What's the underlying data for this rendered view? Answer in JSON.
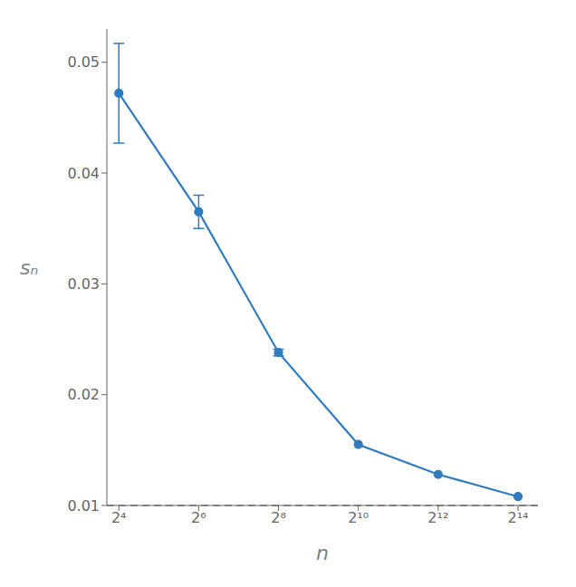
{
  "chart_data": {
    "type": "line",
    "xlabel": "n",
    "ylabel": "sₙ",
    "x": [
      16,
      64,
      256,
      1024,
      4096,
      16384
    ],
    "values": [
      0.0472,
      0.0365,
      0.0238,
      0.0155,
      0.0128,
      0.0108
    ],
    "errors": [
      0.0045,
      0.0015,
      0.0003,
      0.0,
      0.0,
      0.0
    ],
    "color": "#2e7bbf",
    "marker": "circle",
    "line_style": "solid",
    "log": "x",
    "xlim": [
      12.99603834169977,
      23170.47500592079
    ],
    "xticks": [
      {
        "value": 16,
        "label": "2⁴"
      },
      {
        "value": 64,
        "label": "2⁶"
      },
      {
        "value": 256,
        "label": "2⁸"
      },
      {
        "value": 1024,
        "label": "2¹⁰"
      },
      {
        "value": 4096,
        "label": "2¹²"
      },
      {
        "value": 16384,
        "label": "2¹⁴"
      }
    ],
    "ylim": [
      0.01,
      0.053
    ],
    "yticks": [
      0.01,
      0.02,
      0.03,
      0.04,
      0.05
    ],
    "hlines": [
      {
        "y": 0.01,
        "color": "#999999",
        "line_style": "dashed"
      }
    ],
    "grid": false
  }
}
